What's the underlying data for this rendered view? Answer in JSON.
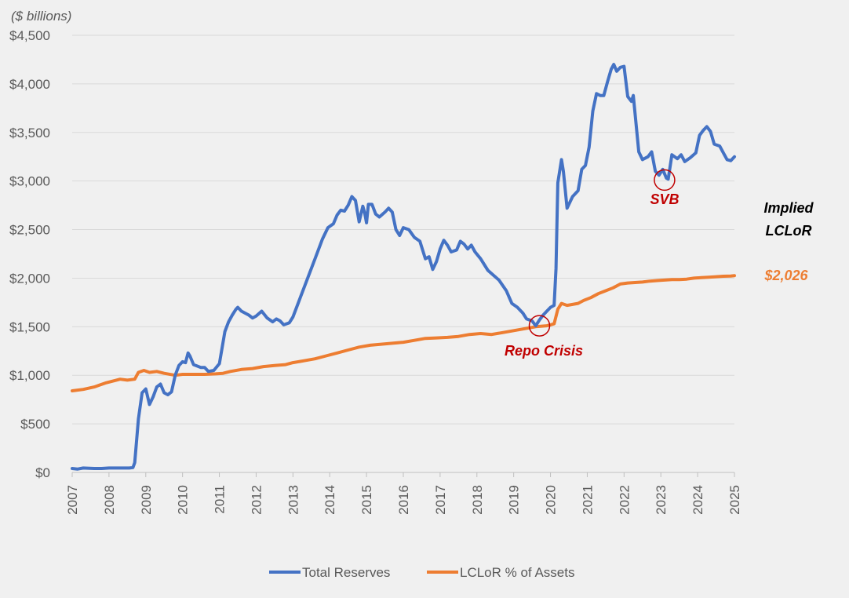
{
  "chart_data": {
    "type": "line",
    "unit_label": "($ billions)",
    "ylim": [
      0,
      4500
    ],
    "y_ticks": [
      {
        "value": 0,
        "label": "$0"
      },
      {
        "value": 500,
        "label": "$500"
      },
      {
        "value": 1000,
        "label": "$1,000"
      },
      {
        "value": 1500,
        "label": "$1,500"
      },
      {
        "value": 2000,
        "label": "$2,000"
      },
      {
        "value": 2500,
        "label": "$2,500"
      },
      {
        "value": 3000,
        "label": "$3,000"
      },
      {
        "value": 3500,
        "label": "$3,500"
      },
      {
        "value": 4000,
        "label": "$4,000"
      },
      {
        "value": 4500,
        "label": "$4,500"
      }
    ],
    "xlim": [
      2007,
      2025
    ],
    "x_ticks": [
      "2007",
      "2008",
      "2009",
      "2010",
      "2011",
      "2012",
      "2013",
      "2014",
      "2015",
      "2016",
      "2017",
      "2018",
      "2019",
      "2020",
      "2021",
      "2022",
      "2023",
      "2024",
      "2025"
    ],
    "grid": true,
    "legend_position": "bottom",
    "series": [
      {
        "name": "Total Reserves",
        "color": "#4472c4",
        "points": [
          [
            2007.0,
            40
          ],
          [
            2007.15,
            35
          ],
          [
            2007.3,
            45
          ],
          [
            2007.6,
            40
          ],
          [
            2007.8,
            40
          ],
          [
            2008.0,
            45
          ],
          [
            2008.3,
            45
          ],
          [
            2008.55,
            45
          ],
          [
            2008.65,
            50
          ],
          [
            2008.7,
            100
          ],
          [
            2008.8,
            550
          ],
          [
            2008.9,
            820
          ],
          [
            2009.0,
            860
          ],
          [
            2009.1,
            700
          ],
          [
            2009.2,
            780
          ],
          [
            2009.3,
            880
          ],
          [
            2009.4,
            910
          ],
          [
            2009.5,
            820
          ],
          [
            2009.6,
            800
          ],
          [
            2009.7,
            830
          ],
          [
            2009.8,
            1000
          ],
          [
            2009.9,
            1100
          ],
          [
            2010.0,
            1140
          ],
          [
            2010.08,
            1130
          ],
          [
            2010.15,
            1230
          ],
          [
            2010.2,
            1200
          ],
          [
            2010.3,
            1110
          ],
          [
            2010.5,
            1080
          ],
          [
            2010.6,
            1080
          ],
          [
            2010.7,
            1040
          ],
          [
            2010.85,
            1050
          ],
          [
            2011.0,
            1120
          ],
          [
            2011.15,
            1450
          ],
          [
            2011.25,
            1550
          ],
          [
            2011.35,
            1620
          ],
          [
            2011.45,
            1680
          ],
          [
            2011.5,
            1700
          ],
          [
            2011.6,
            1660
          ],
          [
            2011.8,
            1620
          ],
          [
            2011.9,
            1590
          ],
          [
            2012.0,
            1610
          ],
          [
            2012.15,
            1660
          ],
          [
            2012.3,
            1590
          ],
          [
            2012.45,
            1550
          ],
          [
            2012.55,
            1580
          ],
          [
            2012.65,
            1560
          ],
          [
            2012.75,
            1520
          ],
          [
            2012.9,
            1540
          ],
          [
            2013.0,
            1600
          ],
          [
            2013.2,
            1800
          ],
          [
            2013.4,
            2000
          ],
          [
            2013.6,
            2200
          ],
          [
            2013.8,
            2400
          ],
          [
            2013.95,
            2520
          ],
          [
            2014.1,
            2560
          ],
          [
            2014.2,
            2650
          ],
          [
            2014.3,
            2700
          ],
          [
            2014.4,
            2690
          ],
          [
            2014.5,
            2750
          ],
          [
            2014.6,
            2840
          ],
          [
            2014.7,
            2800
          ],
          [
            2014.8,
            2580
          ],
          [
            2014.9,
            2740
          ],
          [
            2014.95,
            2670
          ],
          [
            2015.0,
            2570
          ],
          [
            2015.05,
            2760
          ],
          [
            2015.15,
            2760
          ],
          [
            2015.25,
            2660
          ],
          [
            2015.35,
            2630
          ],
          [
            2015.5,
            2680
          ],
          [
            2015.6,
            2720
          ],
          [
            2015.7,
            2680
          ],
          [
            2015.8,
            2500
          ],
          [
            2015.9,
            2440
          ],
          [
            2016.0,
            2520
          ],
          [
            2016.15,
            2500
          ],
          [
            2016.3,
            2420
          ],
          [
            2016.45,
            2380
          ],
          [
            2016.6,
            2200
          ],
          [
            2016.7,
            2220
          ],
          [
            2016.8,
            2090
          ],
          [
            2016.9,
            2170
          ],
          [
            2017.0,
            2300
          ],
          [
            2017.1,
            2390
          ],
          [
            2017.2,
            2340
          ],
          [
            2017.3,
            2270
          ],
          [
            2017.45,
            2290
          ],
          [
            2017.55,
            2380
          ],
          [
            2017.65,
            2350
          ],
          [
            2017.75,
            2300
          ],
          [
            2017.85,
            2340
          ],
          [
            2017.95,
            2270
          ],
          [
            2018.1,
            2200
          ],
          [
            2018.3,
            2080
          ],
          [
            2018.6,
            1980
          ],
          [
            2018.8,
            1870
          ],
          [
            2018.95,
            1740
          ],
          [
            2019.1,
            1700
          ],
          [
            2019.25,
            1640
          ],
          [
            2019.35,
            1580
          ],
          [
            2019.5,
            1560
          ],
          [
            2019.6,
            1510
          ],
          [
            2019.7,
            1570
          ],
          [
            2019.8,
            1620
          ],
          [
            2019.9,
            1660
          ],
          [
            2020.0,
            1700
          ],
          [
            2020.1,
            1720
          ],
          [
            2020.15,
            2100
          ],
          [
            2020.2,
            2980
          ],
          [
            2020.3,
            3220
          ],
          [
            2020.35,
            3100
          ],
          [
            2020.45,
            2720
          ],
          [
            2020.6,
            2840
          ],
          [
            2020.75,
            2900
          ],
          [
            2020.85,
            3120
          ],
          [
            2020.95,
            3160
          ],
          [
            2021.05,
            3350
          ],
          [
            2021.15,
            3720
          ],
          [
            2021.25,
            3900
          ],
          [
            2021.35,
            3880
          ],
          [
            2021.45,
            3880
          ],
          [
            2021.55,
            4020
          ],
          [
            2021.65,
            4150
          ],
          [
            2021.72,
            4200
          ],
          [
            2021.8,
            4130
          ],
          [
            2021.9,
            4170
          ],
          [
            2022.0,
            4180
          ],
          [
            2022.1,
            3870
          ],
          [
            2022.2,
            3820
          ],
          [
            2022.25,
            3880
          ],
          [
            2022.4,
            3300
          ],
          [
            2022.5,
            3220
          ],
          [
            2022.65,
            3250
          ],
          [
            2022.75,
            3300
          ],
          [
            2022.85,
            3100
          ],
          [
            2022.95,
            3060
          ],
          [
            2023.05,
            3120
          ],
          [
            2023.15,
            3030
          ],
          [
            2023.2,
            3020
          ],
          [
            2023.3,
            3270
          ],
          [
            2023.45,
            3230
          ],
          [
            2023.55,
            3270
          ],
          [
            2023.65,
            3200
          ],
          [
            2023.8,
            3240
          ],
          [
            2023.95,
            3290
          ],
          [
            2024.05,
            3470
          ],
          [
            2024.15,
            3520
          ],
          [
            2024.25,
            3560
          ],
          [
            2024.35,
            3510
          ],
          [
            2024.45,
            3380
          ],
          [
            2024.6,
            3360
          ],
          [
            2024.7,
            3290
          ],
          [
            2024.8,
            3220
          ],
          [
            2024.9,
            3210
          ],
          [
            2025.0,
            3250
          ]
        ]
      },
      {
        "name": "LCLoR % of Assets",
        "color": "#ed7d31",
        "points": [
          [
            2007.0,
            840
          ],
          [
            2007.3,
            855
          ],
          [
            2007.6,
            880
          ],
          [
            2007.9,
            920
          ],
          [
            2008.2,
            950
          ],
          [
            2008.3,
            960
          ],
          [
            2008.5,
            950
          ],
          [
            2008.7,
            960
          ],
          [
            2008.8,
            1030
          ],
          [
            2008.95,
            1050
          ],
          [
            2009.1,
            1030
          ],
          [
            2009.3,
            1040
          ],
          [
            2009.5,
            1020
          ],
          [
            2009.8,
            1000
          ],
          [
            2010.0,
            1010
          ],
          [
            2010.3,
            1010
          ],
          [
            2010.6,
            1010
          ],
          [
            2010.9,
            1015
          ],
          [
            2011.1,
            1020
          ],
          [
            2011.3,
            1040
          ],
          [
            2011.6,
            1060
          ],
          [
            2011.9,
            1070
          ],
          [
            2012.2,
            1090
          ],
          [
            2012.5,
            1100
          ],
          [
            2012.8,
            1110
          ],
          [
            2013.0,
            1130
          ],
          [
            2013.3,
            1150
          ],
          [
            2013.6,
            1170
          ],
          [
            2013.9,
            1200
          ],
          [
            2014.2,
            1230
          ],
          [
            2014.5,
            1260
          ],
          [
            2014.8,
            1290
          ],
          [
            2015.1,
            1310
          ],
          [
            2015.4,
            1320
          ],
          [
            2015.7,
            1330
          ],
          [
            2016.0,
            1340
          ],
          [
            2016.3,
            1360
          ],
          [
            2016.6,
            1380
          ],
          [
            2016.9,
            1385
          ],
          [
            2017.2,
            1390
          ],
          [
            2017.5,
            1400
          ],
          [
            2017.8,
            1420
          ],
          [
            2018.1,
            1430
          ],
          [
            2018.4,
            1420
          ],
          [
            2018.7,
            1440
          ],
          [
            2019.0,
            1460
          ],
          [
            2019.3,
            1480
          ],
          [
            2019.6,
            1500
          ],
          [
            2019.9,
            1510
          ],
          [
            2020.0,
            1520
          ],
          [
            2020.1,
            1530
          ],
          [
            2020.2,
            1680
          ],
          [
            2020.3,
            1740
          ],
          [
            2020.45,
            1720
          ],
          [
            2020.6,
            1730
          ],
          [
            2020.75,
            1740
          ],
          [
            2020.9,
            1770
          ],
          [
            2021.1,
            1800
          ],
          [
            2021.3,
            1840
          ],
          [
            2021.5,
            1870
          ],
          [
            2021.7,
            1900
          ],
          [
            2021.9,
            1940
          ],
          [
            2022.1,
            1950
          ],
          [
            2022.3,
            1955
          ],
          [
            2022.5,
            1960
          ],
          [
            2022.7,
            1970
          ],
          [
            2022.9,
            1975
          ],
          [
            2023.1,
            1980
          ],
          [
            2023.3,
            1985
          ],
          [
            2023.5,
            1985
          ],
          [
            2023.7,
            1990
          ],
          [
            2023.9,
            2000
          ],
          [
            2024.1,
            2005
          ],
          [
            2024.3,
            2010
          ],
          [
            2024.5,
            2015
          ],
          [
            2024.7,
            2020
          ],
          [
            2024.9,
            2022
          ],
          [
            2025.0,
            2026
          ]
        ]
      }
    ],
    "annotations": [
      {
        "text": "Repo Crisis",
        "circle_at": [
          2019.7,
          1510
        ],
        "style": "red"
      },
      {
        "text": "SVB",
        "circle_at": [
          2023.1,
          3010
        ],
        "style": "red"
      },
      {
        "text_lines": [
          "Implied",
          "LCLoR"
        ],
        "style": "black"
      },
      {
        "text": "$2,026",
        "style": "orange"
      }
    ]
  }
}
